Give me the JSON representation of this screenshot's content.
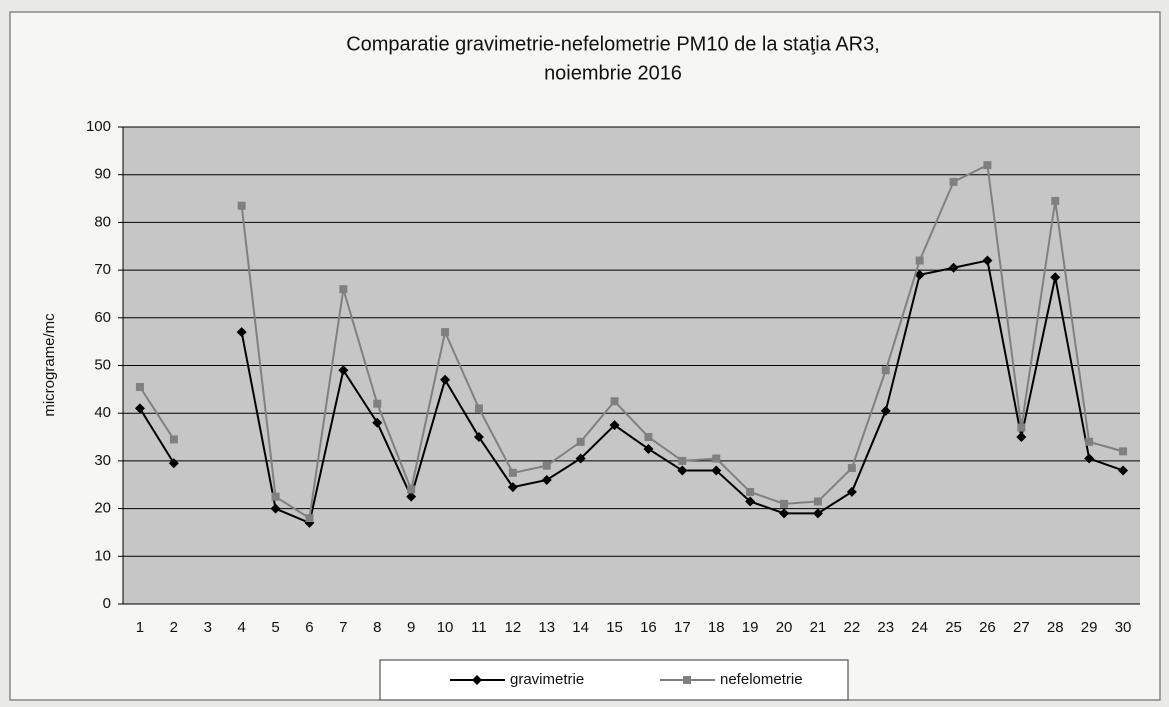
{
  "chart_data": {
    "type": "line",
    "title": [
      "Comparatie gravimetrie-nefelometrie PM10 de la staţia AR3,",
      "noiembrie 2016"
    ],
    "y_label": "micrograme/mc",
    "categories": [
      "1",
      "2",
      "3",
      "4",
      "5",
      "6",
      "7",
      "8",
      "9",
      "10",
      "11",
      "12",
      "13",
      "14",
      "15",
      "16",
      "17",
      "18",
      "19",
      "20",
      "21",
      "22",
      "23",
      "24",
      "25",
      "26",
      "27",
      "28",
      "29",
      "30"
    ],
    "series": [
      {
        "name": "gravimetrie",
        "color": "#000000",
        "marker": "diamond",
        "values": [
          41,
          29.5,
          null,
          57,
          20,
          17,
          49,
          38,
          22.5,
          47,
          35,
          24.5,
          26,
          30.5,
          37.5,
          32.5,
          28,
          28,
          21.5,
          19,
          19,
          23.5,
          40.5,
          69,
          70.5,
          72,
          35,
          68.5,
          30.5,
          28
        ]
      },
      {
        "name": "nefelometrie",
        "color": "#808080",
        "marker": "square",
        "values": [
          45.5,
          34.5,
          null,
          83.5,
          22.5,
          18,
          66,
          42,
          24,
          57,
          41,
          27.5,
          29,
          34,
          42.5,
          35,
          30,
          30.5,
          23.5,
          21,
          21.5,
          28.5,
          49,
          72,
          88.5,
          92,
          37,
          84.5,
          34,
          32
        ]
      }
    ],
    "ylim": [
      0,
      100
    ],
    "yticks": [
      0,
      10,
      20,
      30,
      40,
      50,
      60,
      70,
      80,
      90,
      100
    ],
    "grid": true,
    "legend": "bottom"
  }
}
